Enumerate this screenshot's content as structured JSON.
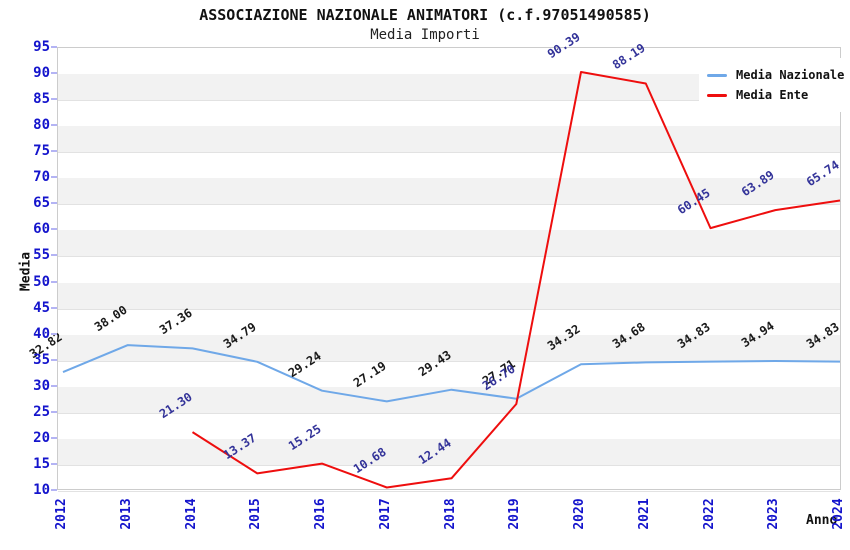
{
  "title": "ASSOCIAZIONE NAZIONALE ANIMATORI (c.f.97051490585)",
  "subtitle": "Media Importi",
  "axes": {
    "y_label": "Media",
    "x_label": "Anno",
    "y_ticks": [
      95,
      90,
      85,
      80,
      75,
      70,
      65,
      60,
      55,
      50,
      45,
      40,
      35,
      30,
      25,
      20,
      15,
      10
    ],
    "tick_color": "#1414cc"
  },
  "legend": {
    "position": "top-right",
    "items": [
      {
        "label": "Media Nazionale",
        "color": "#6fa8e8"
      },
      {
        "label": "Media Ente",
        "color": "#ee0e0e"
      }
    ]
  },
  "chart_data": {
    "type": "line",
    "title": "ASSOCIAZIONE NAZIONALE ANIMATORI (c.f.97051490585)",
    "subtitle": "Media Importi",
    "xlabel": "Anno",
    "ylabel": "Media",
    "ylim": [
      10,
      95
    ],
    "ytick_step": 5,
    "grid": "horizontal",
    "background_bands": true,
    "legend_position": "top-right",
    "categories": [
      "2012",
      "2013",
      "2014",
      "2015",
      "2016",
      "2017",
      "2018",
      "2019",
      "2020",
      "2021",
      "2022",
      "2023",
      "2024"
    ],
    "series": [
      {
        "name": "Media Nazionale",
        "color": "#6fa8e8",
        "label_color": "#1a1a1a",
        "values": [
          32.82,
          38.0,
          37.36,
          34.79,
          29.24,
          27.19,
          29.43,
          27.71,
          34.32,
          34.68,
          34.83,
          34.94,
          34.83
        ]
      },
      {
        "name": "Media Ente",
        "color": "#ee0e0e",
        "label_color": "#333399",
        "values": [
          null,
          null,
          21.3,
          13.37,
          15.25,
          10.68,
          12.44,
          26.7,
          90.39,
          88.19,
          60.45,
          63.89,
          65.74
        ]
      }
    ],
    "value_label_format": "2dp",
    "value_label_rotation_deg": -33
  }
}
